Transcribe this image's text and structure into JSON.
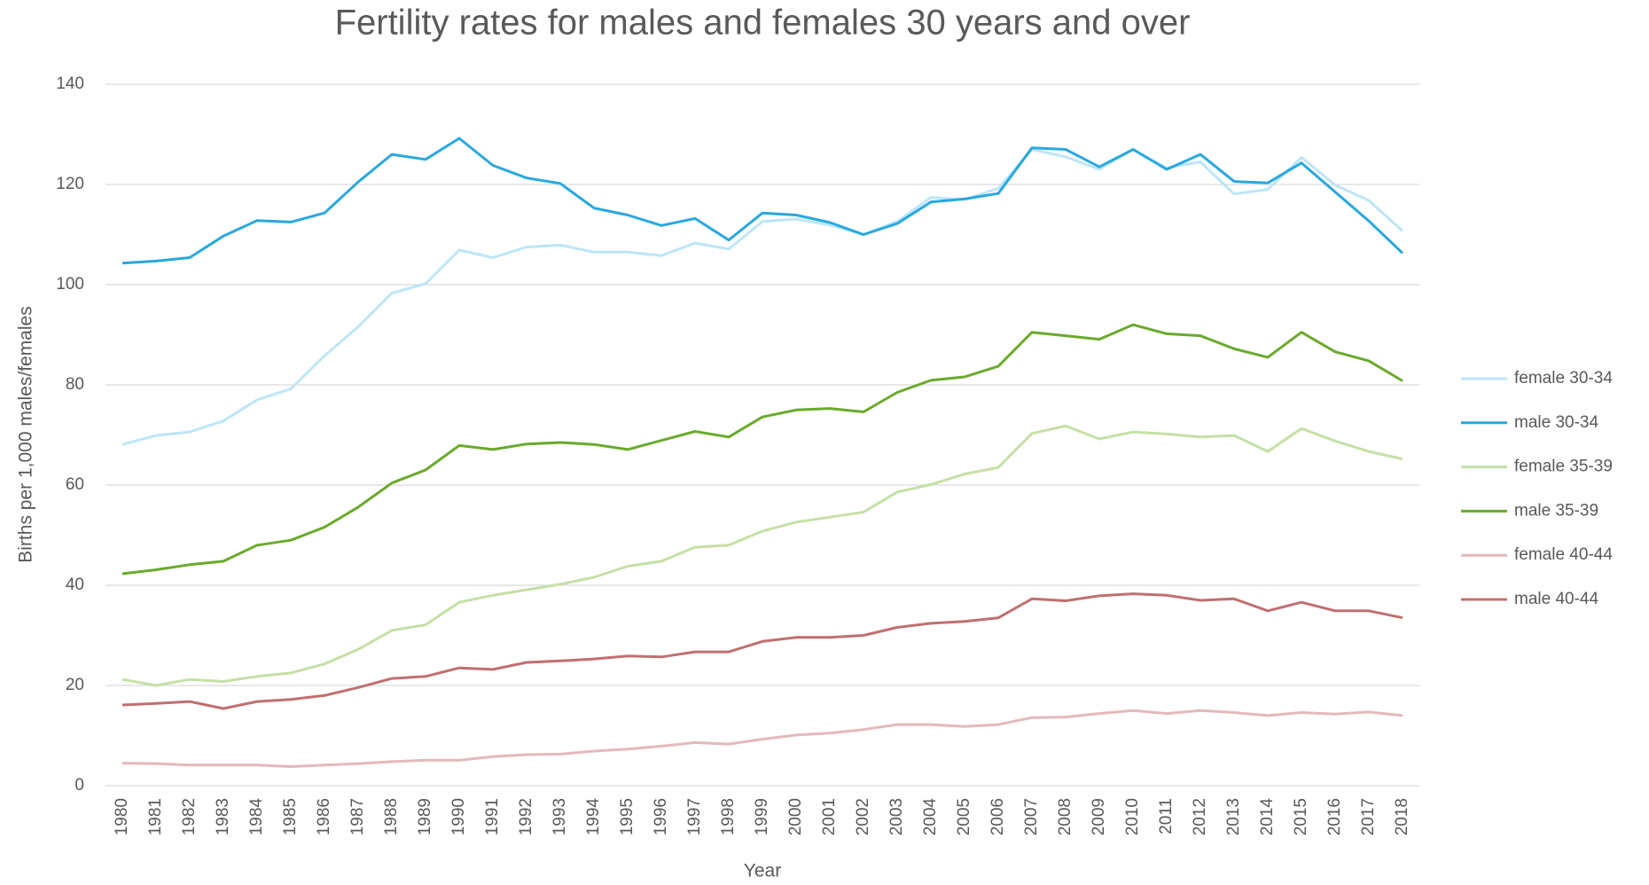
{
  "chart_data": {
    "type": "line",
    "title": "Fertility rates for males and females 30 years and over",
    "xlabel": "Year",
    "ylabel": "Births per 1,000 males/females",
    "categories": [
      "1980",
      "1981",
      "1982",
      "1983",
      "1984",
      "1985",
      "1986",
      "1987",
      "1988",
      "1989",
      "1990",
      "1991",
      "1992",
      "1993",
      "1994",
      "1995",
      "1996",
      "1997",
      "1998",
      "1999",
      "2000",
      "2001",
      "2002",
      "2003",
      "2004",
      "2005",
      "2006",
      "2007",
      "2008",
      "2009",
      "2010",
      "2011",
      "2012",
      "2013",
      "2014",
      "2015",
      "2016",
      "2017",
      "2018"
    ],
    "series": [
      {
        "name": "female 30-34",
        "color": "#bde6f7",
        "values": [
          68.1,
          69.9,
          70.6,
          72.8,
          77,
          79.2,
          85.8,
          91.6,
          98.3,
          100.2,
          106.9,
          105.4,
          107.5,
          107.9,
          106.5,
          106.5,
          105.8,
          108.3,
          107.1,
          112.6,
          113.1,
          111.9,
          110,
          112.6,
          117.4,
          117,
          119.2,
          127,
          125.5,
          123,
          127,
          123.3,
          124.5,
          118.1,
          119,
          125.4,
          119.9,
          116.8,
          110.7
        ]
      },
      {
        "name": "male 30-34",
        "color": "#29a8e0",
        "values": [
          104.3,
          104.7,
          105.4,
          109.7,
          112.8,
          112.5,
          114.3,
          120.5,
          126,
          125,
          129.2,
          123.8,
          121.3,
          120.2,
          115.3,
          113.9,
          111.8,
          113.2,
          108.9,
          114.3,
          113.9,
          112.4,
          110,
          112.2,
          116.5,
          117.1,
          118.2,
          127.3,
          127,
          123.5,
          127,
          123,
          126,
          120.6,
          120.3,
          124.3,
          118.5,
          112.7,
          106.3
        ]
      },
      {
        "name": "female 35-39",
        "color": "#c5e0a5",
        "values": [
          21.2,
          20,
          21.2,
          20.8,
          21.8,
          22.5,
          24.3,
          27.2,
          31,
          32.1,
          36.6,
          38,
          39.1,
          40.2,
          41.6,
          43.8,
          44.8,
          47.6,
          48,
          50.8,
          52.6,
          53.6,
          54.6,
          58.6,
          60.1,
          62.2,
          63.5,
          70.3,
          71.8,
          69.2,
          70.6,
          70.2,
          69.6,
          69.9,
          66.7,
          71.3,
          68.8,
          66.7,
          65.2
        ]
      },
      {
        "name": "male 35-39",
        "color": "#6aaa2c",
        "values": [
          42.3,
          43.1,
          44.1,
          44.8,
          48,
          49,
          51.6,
          55.6,
          60.4,
          63,
          67.9,
          67.1,
          68.2,
          68.5,
          68.1,
          67.1,
          68.9,
          70.7,
          69.6,
          73.6,
          75,
          75.3,
          74.6,
          78.5,
          80.9,
          81.6,
          83.7,
          90.5,
          89.8,
          89.1,
          92,
          90.2,
          89.8,
          87.2,
          85.5,
          90.5,
          86.6,
          84.8,
          80.8
        ]
      },
      {
        "name": "female 40-44",
        "color": "#e4b9bb",
        "values": [
          4.5,
          4.4,
          4.1,
          4.1,
          4.1,
          3.8,
          4.1,
          4.4,
          4.8,
          5.1,
          5.1,
          5.8,
          6.2,
          6.3,
          6.9,
          7.3,
          7.9,
          8.6,
          8.3,
          9.3,
          10.1,
          10.5,
          11.2,
          12.2,
          12.2,
          11.8,
          12.2,
          13.6,
          13.7,
          14.4,
          15,
          14.4,
          15,
          14.6,
          14,
          14.6,
          14.3,
          14.7,
          14
        ]
      },
      {
        "name": "male 40-44",
        "color": "#c0706f",
        "values": [
          16.1,
          16.4,
          16.8,
          15.4,
          16.8,
          17.2,
          18,
          19.6,
          21.4,
          21.8,
          23.5,
          23.2,
          24.6,
          24.9,
          25.3,
          25.9,
          25.7,
          26.7,
          26.7,
          28.8,
          29.6,
          29.6,
          30,
          31.6,
          32.4,
          32.8,
          33.5,
          37.3,
          36.9,
          37.9,
          38.3,
          38,
          37,
          37.3,
          34.9,
          36.6,
          34.9,
          34.9,
          33.5
        ]
      }
    ],
    "ylim": [
      0,
      140
    ],
    "yticks": [
      0,
      20,
      40,
      60,
      80,
      100,
      120,
      140
    ],
    "grid": true,
    "legend": "right"
  }
}
